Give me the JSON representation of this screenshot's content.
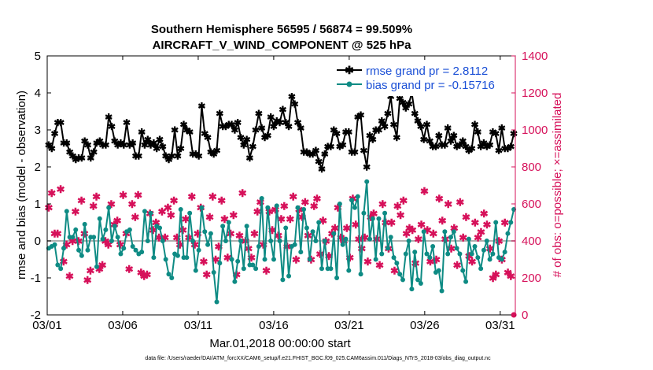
{
  "chart_data": {
    "type": "line",
    "title": "Southern Hemisphere 56595 / 56874 = 99.509%",
    "subtitle": "AIRCRAFT_V_WIND_COMPONENT @ 525 hPa",
    "xlabel": "Mar.01,2018 00:00:00 start",
    "ylabel": "rmse and bias (model - observation)",
    "y2label": "# of obs: o=possible; ×=assimilated",
    "footnote": "data file: /Users/raeder/DAI/ATM_forcXX/CAM6_setup/f.e21.FHIST_BGC.f09_025.CAM6assim.011/Diags_NTrS_2018-03/obs_diag_output.nc",
    "x_ticks": [
      1,
      6,
      11,
      16,
      21,
      26,
      31
    ],
    "x_tick_labels": [
      "03/01",
      "03/06",
      "03/11",
      "03/16",
      "03/21",
      "03/26",
      "03/31"
    ],
    "xlim": [
      1,
      32
    ],
    "ylim": [
      -2,
      5
    ],
    "y_ticks": [
      -2,
      -1,
      0,
      1,
      2,
      3,
      4,
      5
    ],
    "y_tick_labels": [
      "-2",
      "-1",
      "0",
      "1",
      "2",
      "3",
      "4",
      "5"
    ],
    "y2lim": [
      0,
      1400
    ],
    "y2_ticks": [
      0,
      200,
      400,
      600,
      800,
      1000,
      1200,
      1400
    ],
    "y2_tick_labels": [
      "0",
      "200",
      "400",
      "600",
      "800",
      "1000",
      "1200",
      "1400"
    ],
    "legend_position": "top-right",
    "zero_line": true,
    "colors": {
      "rmse": "#000000",
      "bias": "#0e8b84",
      "obs": "#d6115a",
      "right_axis": "#d6115a",
      "legend_text": "#1a4fd6",
      "zero_line": "#b0b0b0"
    },
    "series": [
      {
        "name": "rmse grand pr = 2.8112",
        "axis": "left",
        "values": [
          2.6,
          2.5,
          2.9,
          3.2,
          3.2,
          2.65,
          2.65,
          2.4,
          2.3,
          2.2,
          2.25,
          2.25,
          2.7,
          2.6,
          2.25,
          2.4,
          2.65,
          2.7,
          2.6,
          2.6,
          3.35,
          3.1,
          2.7,
          2.6,
          2.65,
          2.6,
          3.2,
          2.6,
          2.65,
          2.3,
          2.3,
          2.95,
          2.6,
          2.75,
          2.6,
          2.65,
          2.5,
          2.75,
          2.55,
          2.3,
          2.2,
          2.3,
          3.0,
          2.3,
          2.5,
          3.15,
          3.0,
          2.95,
          2.35,
          2.35,
          2.3,
          3.65,
          2.9,
          2.8,
          2.4,
          2.35,
          2.45,
          3.45,
          3.1,
          3.1,
          3.15,
          3.15,
          3.0,
          3.2,
          2.8,
          2.6,
          2.75,
          2.25,
          2.55,
          3.0,
          3.45,
          3.05,
          2.8,
          2.85,
          3.35,
          3.1,
          3.25,
          3.2,
          3.55,
          3.2,
          3.1,
          3.9,
          3.7,
          3.2,
          3.05,
          2.4,
          2.4,
          2.35,
          2.35,
          2.45,
          2.15,
          1.95,
          2.35,
          2.55,
          2.55,
          3.0,
          2.9,
          2.55,
          2.6,
          2.95,
          2.95,
          2.4,
          2.4,
          3.35,
          3.4,
          2.45,
          2.0,
          2.85,
          2.75,
          3.0,
          3.0,
          3.25,
          3.1,
          3.45,
          3.9,
          3.15,
          2.8,
          3.85,
          3.75,
          3.6,
          3.7,
          4.0,
          3.45,
          3.25,
          3.1,
          2.75,
          3.15,
          2.7,
          2.55,
          2.55,
          2.85,
          2.6,
          2.6,
          3.05,
          2.7,
          2.85,
          2.55,
          2.6,
          2.7,
          2.55,
          2.45,
          2.5,
          3.15,
          2.95,
          2.55,
          2.65,
          2.55,
          2.6,
          2.95,
          2.9,
          2.45,
          3.05,
          2.5,
          2.5,
          2.55,
          2.9
        ]
      },
      {
        "name": "bias grand pr = -0.15716",
        "axis": "left",
        "values": [
          -0.2,
          -0.15,
          -0.1,
          -0.65,
          -0.75,
          -0.2,
          0.8,
          0.1,
          0.1,
          0.3,
          -0.25,
          -0.4,
          0.45,
          -0.25,
          0.1,
          0.1,
          -0.7,
          0.6,
          0.05,
          0.3,
          0.9,
          0.0,
          0.4,
          0.1,
          -0.35,
          -0.2,
          0.25,
          0.3,
          -0.15,
          -0.25,
          -0.35,
          -0.3,
          0.8,
          0.0,
          0.75,
          -0.45,
          0.4,
          0.35,
          0.0,
          -0.5,
          -0.9,
          -1.0,
          -0.35,
          -0.4,
          0.85,
          -0.45,
          -0.45,
          0.75,
          0.0,
          -0.8,
          -0.25,
          0.9,
          0.25,
          -0.1,
          0.2,
          -0.85,
          -1.65,
          -0.6,
          0.4,
          0.0,
          0.5,
          -0.5,
          -1.1,
          -0.55,
          0.0,
          -0.75,
          0.4,
          -0.65,
          -0.65,
          -0.75,
          -0.15,
          1.15,
          -0.5,
          0.9,
          0.0,
          -0.5,
          0.95,
          0.0,
          -1.05,
          0.35,
          -0.95,
          -0.15,
          -0.1,
          0.9,
          -0.3,
          0.85,
          0.35,
          -0.5,
          0.25,
          0.0,
          0.5,
          -0.75,
          0.0,
          -0.75,
          -0.75,
          0.2,
          -1.0,
          1.0,
          -0.1,
          0.05,
          -0.8,
          1.1,
          0.9,
          1.2,
          -0.9,
          0.75,
          1.6,
          0.05,
          0.6,
          -0.5,
          0.6,
          -0.35,
          0.75,
          -0.2,
          0.1,
          -0.45,
          -0.6,
          -0.9,
          -1.05,
          -0.35,
          0.0,
          -1.3,
          -0.3,
          -1.05,
          -1.15,
          0.25,
          -0.35,
          -0.45,
          -0.15,
          -0.85,
          -0.8,
          -1.35,
          0.25,
          -0.35,
          0.1,
          0.25,
          -0.2,
          -0.35,
          -0.8,
          -1.1,
          0.05,
          -0.35,
          -0.15,
          -0.45,
          -0.75,
          -0.25,
          0.0,
          -0.5,
          -0.35,
          0.5,
          -0.45,
          -0.5,
          -0.3,
          0.2,
          0.5,
          0.85
        ]
      },
      {
        "name": "# of obs assimilated",
        "axis": "right",
        "values": [
          580,
          660,
          440,
          440,
          680,
          290,
          380,
          210,
          400,
          560,
          400,
          620,
          440,
          190,
          240,
          590,
          640,
          250,
          270,
          400,
          380,
          600,
          490,
          510,
          380,
          650,
          440,
          250,
          600,
          530,
          650,
          230,
          210,
          220,
          550,
          460,
          500,
          420,
          560,
          420,
          580,
          540,
          620,
          420,
          380,
          460,
          520,
          420,
          640,
          380,
          440,
          580,
          290,
          220,
          530,
          640,
          300,
          370,
          620,
          520,
          310,
          440,
          540,
          220,
          430,
          660,
          400,
          360,
          310,
          440,
          560,
          610,
          380,
          240,
          560,
          460,
          570,
          430,
          520,
          590,
          370,
          520,
          640,
          300,
          570,
          530,
          610,
          430,
          300,
          590,
          630,
          330,
          510,
          400,
          320,
          440,
          470,
          580,
          420,
          400,
          470,
          310,
          630,
          490,
          410,
          360,
          420,
          290,
          530,
          550,
          410,
          270,
          600,
          500,
          360,
          500,
          240,
          590,
          540,
          620,
          440,
          470,
          460,
          280,
          410,
          490,
          670,
          460,
          290,
          440,
          300,
          630,
          510,
          410,
          600,
          360,
          470,
          270,
          610,
          420,
          530,
          320,
          290,
          500,
          420,
          450,
          550,
          490,
          360,
          200,
          220,
          400,
          300,
          500,
          230,
          210,
          0
        ]
      },
      {
        "name": "# of obs possible",
        "axis": "right",
        "values": [
          590,
          670,
          450,
          450,
          690,
          300,
          390,
          220,
          410,
          570,
          410,
          630,
          450,
          200,
          250,
          600,
          650,
          260,
          280,
          410,
          390,
          610,
          500,
          520,
          390,
          660,
          450,
          260,
          610,
          540,
          660,
          240,
          220,
          230,
          560,
          470,
          510,
          430,
          570,
          430,
          590,
          550,
          630,
          430,
          390,
          470,
          530,
          430,
          650,
          390,
          450,
          590,
          300,
          230,
          540,
          650,
          310,
          380,
          630,
          530,
          320,
          450,
          550,
          230,
          440,
          670,
          410,
          370,
          320,
          450,
          570,
          620,
          390,
          250,
          570,
          470,
          580,
          440,
          530,
          600,
          380,
          530,
          650,
          310,
          580,
          540,
          620,
          440,
          310,
          600,
          640,
          340,
          520,
          410,
          330,
          450,
          480,
          590,
          430,
          410,
          480,
          320,
          640,
          500,
          420,
          370,
          430,
          300,
          540,
          560,
          420,
          280,
          610,
          510,
          370,
          510,
          250,
          600,
          550,
          630,
          450,
          480,
          470,
          290,
          420,
          500,
          680,
          470,
          300,
          450,
          310,
          640,
          520,
          420,
          610,
          370,
          480,
          280,
          620,
          430,
          540,
          330,
          300,
          510,
          430,
          460,
          560,
          500,
          370,
          210,
          230,
          410,
          310,
          510,
          240,
          220,
          0
        ]
      }
    ]
  }
}
